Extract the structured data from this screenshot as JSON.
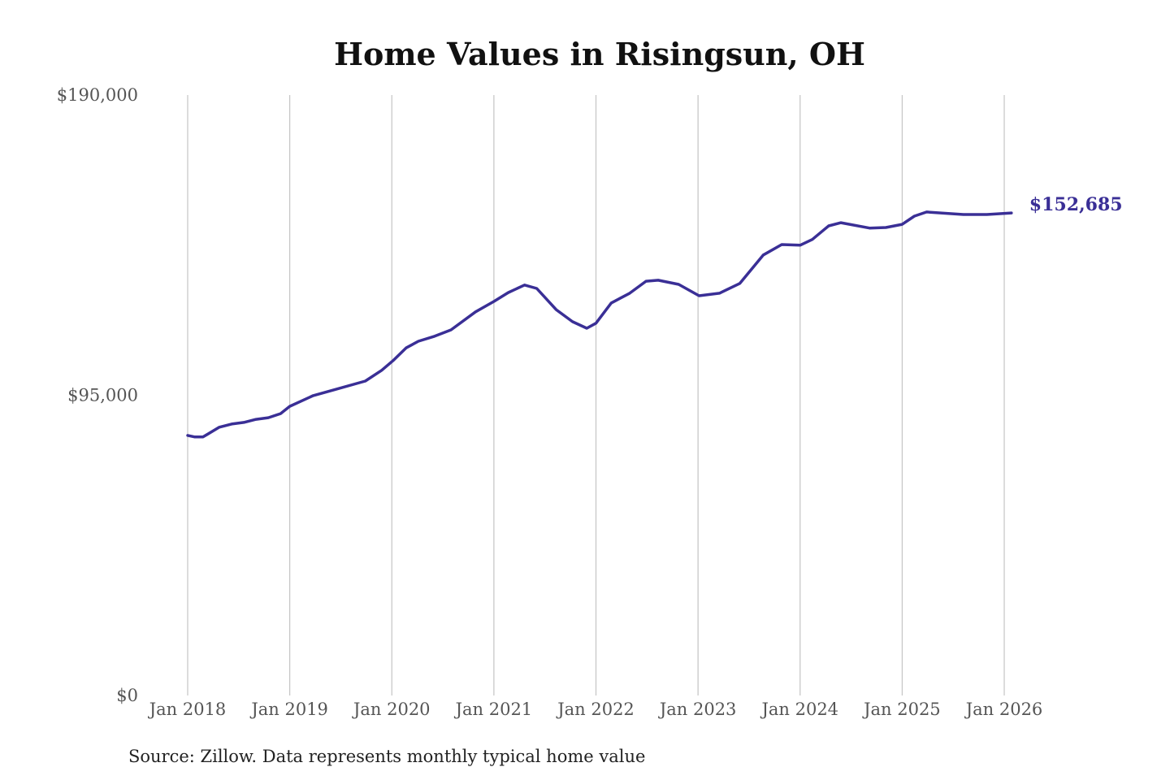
{
  "chart_data": {
    "type": "line",
    "title": "Home Values in Risingsun, OH",
    "xlabel": "",
    "ylabel": "",
    "ylim": [
      0,
      190000
    ],
    "xlim": [
      2018,
      2026
    ],
    "y_ticks": [
      {
        "value": 0,
        "label": "$0"
      },
      {
        "value": 95000,
        "label": "$95,000"
      },
      {
        "value": 190000,
        "label": "$190,000"
      }
    ],
    "x_ticks": [
      {
        "value": 2018,
        "label": "Jan 2018"
      },
      {
        "value": 2019,
        "label": "Jan 2019"
      },
      {
        "value": 2020,
        "label": "Jan 2020"
      },
      {
        "value": 2021,
        "label": "Jan 2021"
      },
      {
        "value": 2022,
        "label": "Jan 2022"
      },
      {
        "value": 2023,
        "label": "Jan 2023"
      },
      {
        "value": 2024,
        "label": "Jan 2024"
      },
      {
        "value": 2025,
        "label": "Jan 2025"
      },
      {
        "value": 2026,
        "label": "Jan 2026"
      }
    ],
    "grid": "vertical",
    "line_color": "#3a2f96",
    "series": [
      {
        "name": "Typical home value",
        "points": [
          [
            2018.0,
            82300
          ],
          [
            2018.07,
            81800
          ],
          [
            2018.15,
            81800
          ],
          [
            2018.31,
            84900
          ],
          [
            2018.43,
            85900
          ],
          [
            2018.55,
            86400
          ],
          [
            2018.67,
            87400
          ],
          [
            2018.79,
            87900
          ],
          [
            2018.91,
            89200
          ],
          [
            2019.0,
            91500
          ],
          [
            2019.23,
            94900
          ],
          [
            2019.43,
            96700
          ],
          [
            2019.74,
            99500
          ],
          [
            2019.9,
            102900
          ],
          [
            2020.01,
            105900
          ],
          [
            2020.14,
            110000
          ],
          [
            2020.26,
            112100
          ],
          [
            2020.42,
            113700
          ],
          [
            2020.58,
            115700
          ],
          [
            2020.82,
            121400
          ],
          [
            2021.0,
            124700
          ],
          [
            2021.14,
            127500
          ],
          [
            2021.3,
            129900
          ],
          [
            2021.42,
            128800
          ],
          [
            2021.61,
            122100
          ],
          [
            2021.77,
            118300
          ],
          [
            2021.91,
            116200
          ],
          [
            2022.0,
            117800
          ],
          [
            2022.15,
            124200
          ],
          [
            2022.33,
            127300
          ],
          [
            2022.49,
            131100
          ],
          [
            2022.61,
            131400
          ],
          [
            2022.81,
            130100
          ],
          [
            2023.01,
            126500
          ],
          [
            2023.21,
            127300
          ],
          [
            2023.41,
            130400
          ],
          [
            2023.64,
            139400
          ],
          [
            2023.82,
            142700
          ],
          [
            2024.0,
            142500
          ],
          [
            2024.12,
            144300
          ],
          [
            2024.28,
            148600
          ],
          [
            2024.4,
            149600
          ],
          [
            2024.68,
            147900
          ],
          [
            2024.84,
            148100
          ],
          [
            2025.0,
            149100
          ],
          [
            2025.12,
            151700
          ],
          [
            2025.24,
            153000
          ],
          [
            2025.6,
            152200
          ],
          [
            2025.83,
            152200
          ],
          [
            2026.07,
            152685
          ]
        ]
      }
    ],
    "end_label": "$152,685",
    "source": "Source: Zillow. Data represents monthly typical home value"
  }
}
